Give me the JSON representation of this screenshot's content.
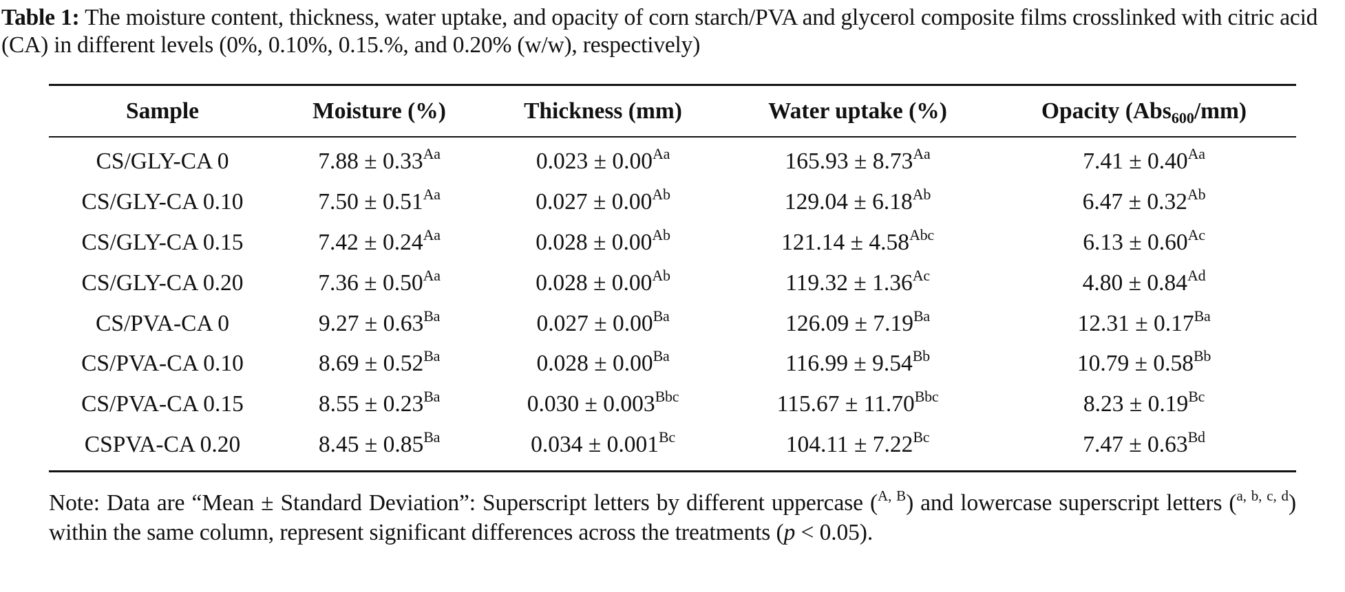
{
  "caption": {
    "label": "Table 1:",
    "text": " The moisture content, thickness, water uptake, and opacity of corn starch/PVA and glycerol composite films crosslinked with citric acid (CA) in different levels (0%, 0.10%, 0.15.%, and 0.20% (w/w), respectively)"
  },
  "table": {
    "headers": {
      "sample": "Sample",
      "moisture": "Moisture (%)",
      "thickness": "Thickness (mm)",
      "water_uptake": "Water uptake (%)",
      "opacity_prefix": "Opacity (Abs",
      "opacity_sub": "600",
      "opacity_suffix": "/mm)"
    },
    "rows": [
      {
        "sample": "CS/GLY-CA 0",
        "moisture": "7.88 ± 0.33",
        "moisture_sup": "Aa",
        "thickness": "0.023 ± 0.00",
        "thickness_sup": "Aa",
        "water_uptake": "165.93 ± 8.73",
        "water_uptake_sup": "Aa",
        "opacity": "7.41 ± 0.40",
        "opacity_sup": "Aa"
      },
      {
        "sample": "CS/GLY-CA 0.10",
        "moisture": "7.50 ± 0.51",
        "moisture_sup": "Aa",
        "thickness": "0.027 ± 0.00",
        "thickness_sup": "Ab",
        "water_uptake": "129.04 ± 6.18",
        "water_uptake_sup": "Ab",
        "opacity": "6.47 ± 0.32",
        "opacity_sup": "Ab"
      },
      {
        "sample": "CS/GLY-CA 0.15",
        "moisture": "7.42 ± 0.24",
        "moisture_sup": "Aa",
        "thickness": "0.028 ± 0.00",
        "thickness_sup": "Ab",
        "water_uptake": "121.14 ± 4.58",
        "water_uptake_sup": "Abc",
        "opacity": "6.13 ± 0.60",
        "opacity_sup": "Ac"
      },
      {
        "sample": "CS/GLY-CA 0.20",
        "moisture": "7.36 ± 0.50",
        "moisture_sup": "Aa",
        "thickness": "0.028 ± 0.00",
        "thickness_sup": "Ab",
        "water_uptake": "119.32 ± 1.36",
        "water_uptake_sup": "Ac",
        "opacity": "4.80 ± 0.84",
        "opacity_sup": "Ad"
      },
      {
        "sample": "CS/PVA-CA 0",
        "moisture": "9.27 ± 0.63",
        "moisture_sup": "Ba",
        "thickness": "0.027 ± 0.00",
        "thickness_sup": "Ba",
        "water_uptake": "126.09 ± 7.19",
        "water_uptake_sup": "Ba",
        "opacity": "12.31 ± 0.17",
        "opacity_sup": "Ba"
      },
      {
        "sample": "CS/PVA-CA 0.10",
        "moisture": "8.69 ± 0.52",
        "moisture_sup": "Ba",
        "thickness": "0.028 ± 0.00",
        "thickness_sup": "Ba",
        "water_uptake": "116.99 ± 9.54",
        "water_uptake_sup": "Bb",
        "opacity": "10.79 ± 0.58",
        "opacity_sup": "Bb"
      },
      {
        "sample": "CS/PVA-CA 0.15",
        "moisture": "8.55 ± 0.23",
        "moisture_sup": "Ba",
        "thickness": "0.030 ± 0.003",
        "thickness_sup": "Bbc",
        "water_uptake": "115.67 ± 11.70",
        "water_uptake_sup": "Bbc",
        "opacity": "8.23 ± 0.19",
        "opacity_sup": "Bc"
      },
      {
        "sample": "CSPVA-CA 0.20",
        "moisture": "8.45 ± 0.85",
        "moisture_sup": "Ba",
        "thickness": "0.034 ± 0.001",
        "thickness_sup": "Bc",
        "water_uptake": "104.11 ± 7.22",
        "water_uptake_sup": "Bc",
        "opacity": "7.47 ± 0.63",
        "opacity_sup": "Bd"
      }
    ]
  },
  "note": {
    "part1": "Note: Data are “Mean ± Standard Deviation”: Superscript letters by different uppercase (",
    "sup_upper": "A, B",
    "part2": ") and lowercase superscript letters (",
    "sup_lower": "a, b, c, d",
    "part3": ") within the same column, represent significant differences across the treatments (",
    "p_symbol": "p",
    "part4": " < 0.05)."
  }
}
